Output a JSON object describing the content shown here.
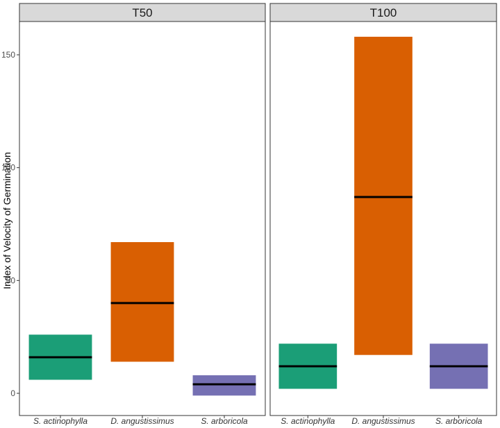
{
  "chart_data": {
    "type": "crossbar",
    "ylabel": "Index of Velocity of Germination",
    "xlabel": "",
    "ylim": [
      -10,
      165
    ],
    "yticks": [
      0,
      50,
      100,
      150
    ],
    "categories": [
      "S. actinophylla",
      "D. angustissimus",
      "S. arboricola"
    ],
    "colors": [
      "#1b9e77",
      "#d95f02",
      "#7570b3"
    ],
    "median_color": "#000000",
    "grid": false,
    "legend": "none",
    "panels": [
      {
        "label": "T50",
        "bars": [
          {
            "category": "S. actinophylla",
            "low": 6,
            "median": 16,
            "high": 26
          },
          {
            "category": "D. angustissimus",
            "low": 14,
            "median": 40,
            "high": 67
          },
          {
            "category": "S. arboricola",
            "low": -1,
            "median": 4,
            "high": 8
          }
        ]
      },
      {
        "label": "T100",
        "bars": [
          {
            "category": "S. actinophylla",
            "low": 2,
            "median": 12,
            "high": 22
          },
          {
            "category": "D. angustissimus",
            "low": 17,
            "median": 87,
            "high": 158
          },
          {
            "category": "S. arboricola",
            "low": 2,
            "median": 12,
            "high": 22
          }
        ]
      }
    ]
  }
}
